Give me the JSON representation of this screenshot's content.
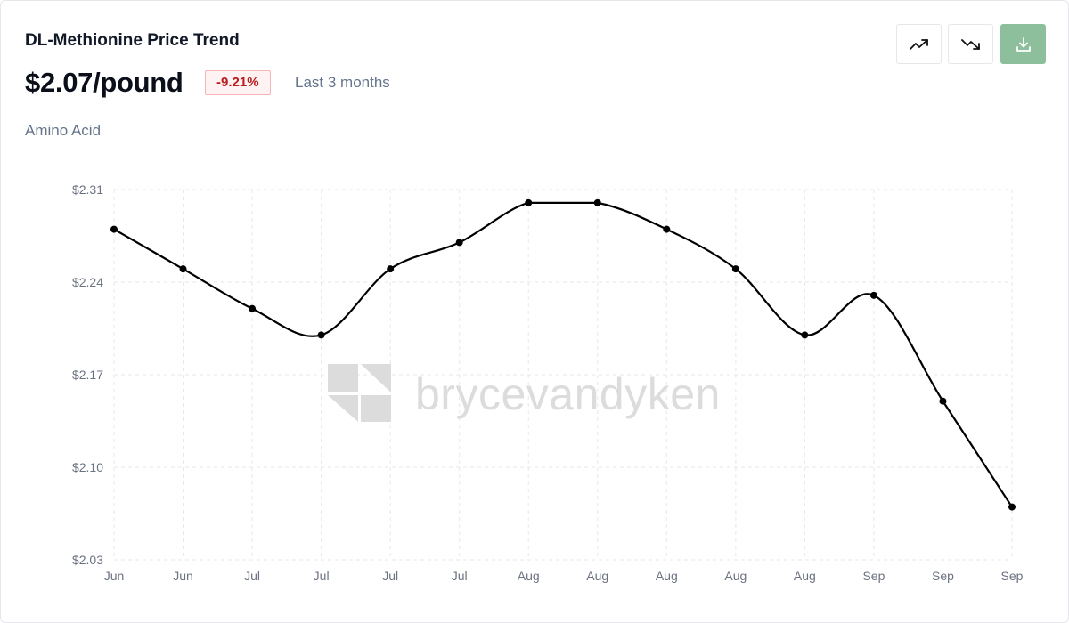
{
  "header": {
    "title": "DL-Methionine Price Trend",
    "price": "$2.07/pound",
    "change": "-9.21%",
    "period": "Last 3 months",
    "category": "Amino Acid"
  },
  "toolbar": {
    "trend_up_icon": "trending-up-icon",
    "trend_down_icon": "trending-down-icon",
    "download_icon": "download-icon",
    "download_color": "#8dbf9d"
  },
  "watermark": {
    "text": "brycevandyken"
  },
  "colors": {
    "line": "#000000",
    "negative": "#b91c1c"
  },
  "chart_data": {
    "type": "line",
    "x": [
      "Jun",
      "Jun",
      "Jul",
      "Jul",
      "Jul",
      "Jul",
      "Aug",
      "Aug",
      "Aug",
      "Aug",
      "Aug",
      "Sep",
      "Sep",
      "Sep"
    ],
    "series": [
      {
        "values": [
          2.28,
          2.25,
          2.22,
          2.2,
          2.25,
          2.27,
          2.3,
          2.3,
          2.28,
          2.25,
          2.2,
          2.23,
          2.15,
          2.07
        ]
      }
    ],
    "yticks": [
      "$2.31",
      "$2.24",
      "$2.17",
      "$2.10",
      "$2.03"
    ],
    "ylim": [
      2.03,
      2.31
    ],
    "grid": true,
    "smooth": true
  }
}
